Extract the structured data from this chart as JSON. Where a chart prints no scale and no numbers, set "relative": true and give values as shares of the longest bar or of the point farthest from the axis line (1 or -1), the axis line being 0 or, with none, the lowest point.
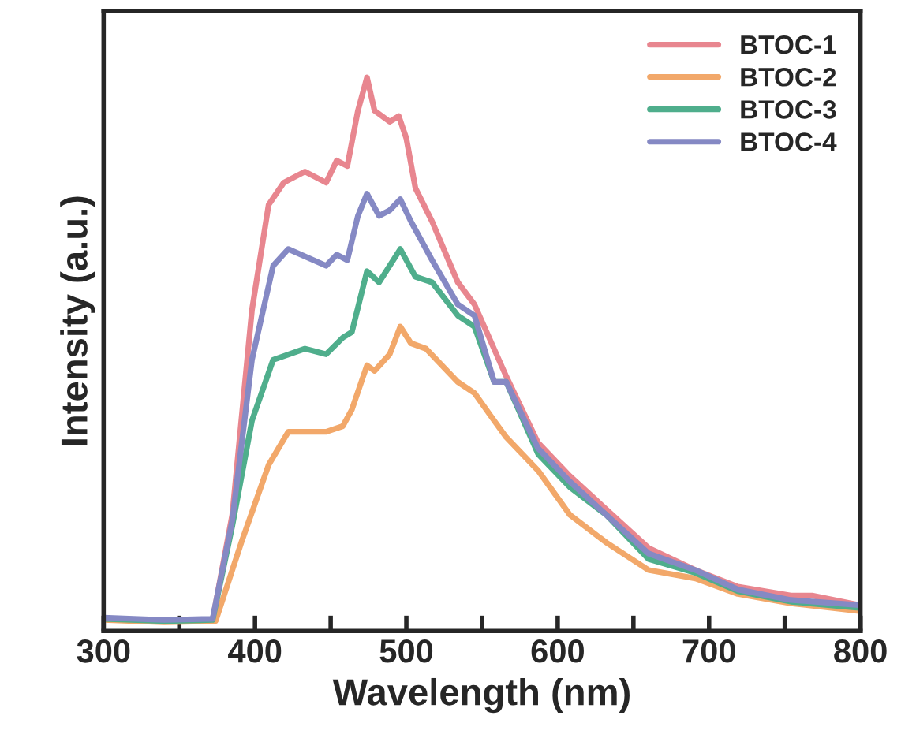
{
  "chart_data": {
    "type": "line",
    "relative": true,
    "xlabel": "Wavelength (nm)",
    "ylabel": "Intensity (a.u.)",
    "xlim": [
      300,
      800
    ],
    "xticks": [
      300,
      {
        "value": 350,
        "label": null
      },
      400,
      {
        "value": 450,
        "label": null
      },
      500,
      {
        "value": 550,
        "label": null
      },
      600,
      {
        "value": 650,
        "label": null
      },
      700,
      {
        "value": 750,
        "label": null
      },
      800
    ],
    "legend": "top right",
    "grid": false,
    "marker": "none",
    "line_style": "solid",
    "series": [
      {
        "name": "BTOC-1",
        "color": "#e8868f",
        "x": [
          300,
          340,
          372,
          385,
          398,
          409,
          419,
          433,
          447,
          454,
          461,
          468,
          474,
          479,
          484,
          489,
          495,
          500,
          506,
          517,
          534,
          545,
          566,
          587,
          608,
          632,
          660,
          691,
          719,
          754,
          768,
          799
        ],
        "values": [
          0.022,
          0.018,
          0.02,
          0.21,
          0.58,
          0.77,
          0.81,
          0.83,
          0.81,
          0.85,
          0.84,
          0.94,
          1.0,
          0.94,
          0.93,
          0.92,
          0.93,
          0.89,
          0.8,
          0.74,
          0.63,
          0.59,
          0.46,
          0.34,
          0.28,
          0.22,
          0.15,
          0.11,
          0.08,
          0.064,
          0.064,
          0.047
        ]
      },
      {
        "name": "BTOC-2",
        "color": "#f2a86a",
        "x": [
          300,
          340,
          374,
          391,
          409,
          422,
          447,
          458,
          464,
          474,
          479,
          489,
          496,
          503,
          513,
          534,
          545,
          558,
          566,
          587,
          608,
          632,
          660,
          691,
          719,
          754,
          799
        ],
        "values": [
          0.02,
          0.016,
          0.018,
          0.16,
          0.3,
          0.36,
          0.36,
          0.37,
          0.4,
          0.48,
          0.47,
          0.5,
          0.55,
          0.52,
          0.51,
          0.45,
          0.43,
          0.38,
          0.35,
          0.29,
          0.21,
          0.16,
          0.11,
          0.095,
          0.067,
          0.05,
          0.036
        ]
      },
      {
        "name": "BTOC-3",
        "color": "#4fae8c",
        "x": [
          300,
          340,
          372,
          385,
          398,
          412,
          433,
          447,
          458,
          464,
          474,
          482,
          496,
          506,
          517,
          534,
          545,
          558,
          566,
          587,
          608,
          632,
          660,
          691,
          719,
          754,
          799
        ],
        "values": [
          0.022,
          0.018,
          0.02,
          0.19,
          0.38,
          0.49,
          0.51,
          0.5,
          0.53,
          0.54,
          0.65,
          0.63,
          0.69,
          0.64,
          0.63,
          0.57,
          0.55,
          0.45,
          0.45,
          0.32,
          0.26,
          0.21,
          0.13,
          0.105,
          0.072,
          0.053,
          0.042
        ]
      },
      {
        "name": "BTOC-4",
        "color": "#8589c4",
        "x": [
          300,
          340,
          372,
          385,
          398,
          412,
          422,
          447,
          454,
          461,
          468,
          474,
          482,
          489,
          496,
          503,
          517,
          534,
          545,
          558,
          566,
          587,
          608,
          632,
          660,
          691,
          719,
          754,
          799
        ],
        "values": [
          0.024,
          0.02,
          0.022,
          0.2,
          0.49,
          0.66,
          0.69,
          0.66,
          0.68,
          0.67,
          0.75,
          0.79,
          0.75,
          0.76,
          0.78,
          0.74,
          0.67,
          0.59,
          0.57,
          0.45,
          0.45,
          0.33,
          0.27,
          0.21,
          0.14,
          0.11,
          0.075,
          0.056,
          0.047
        ]
      }
    ]
  }
}
